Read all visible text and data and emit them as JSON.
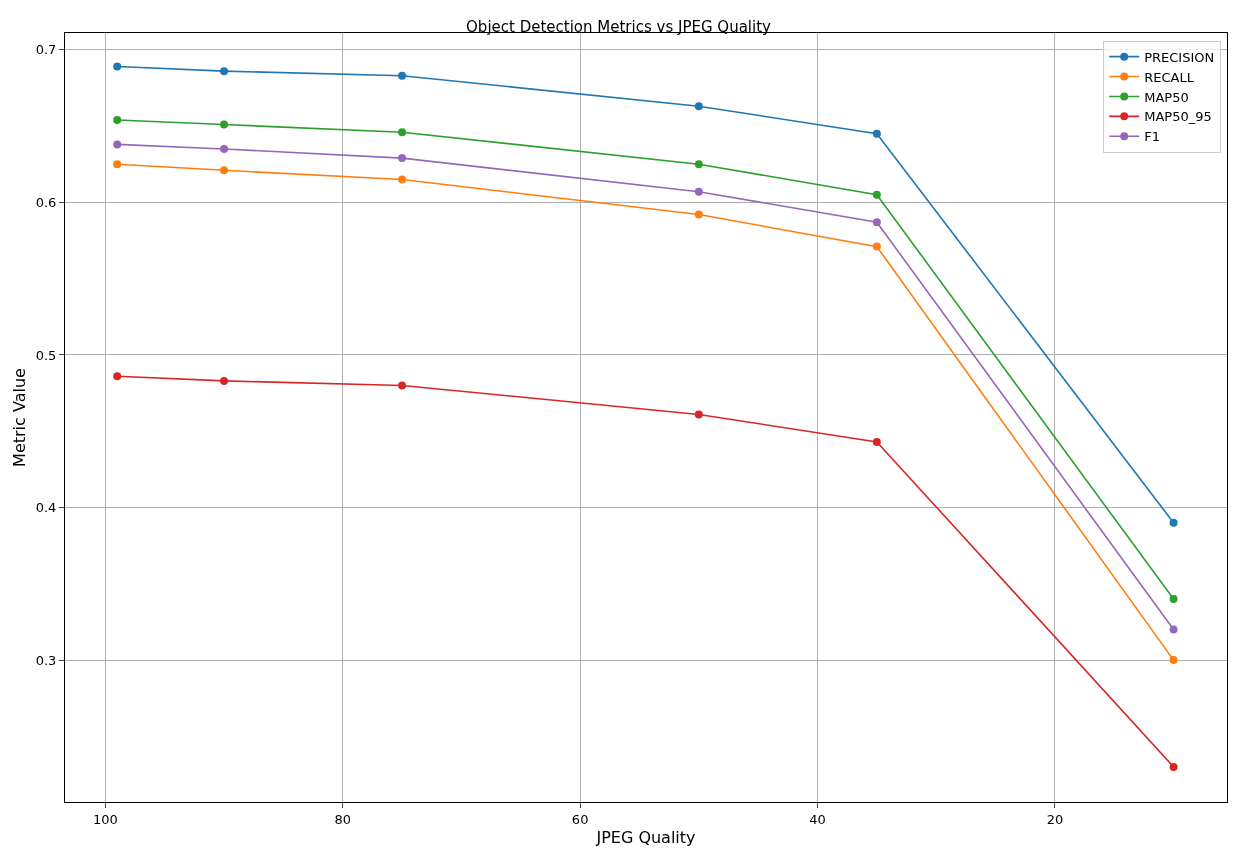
{
  "chart_data": {
    "type": "line",
    "title": "Object Detection Metrics vs JPEG Quality",
    "xlabel": "JPEG Quality",
    "ylabel": "Metric Value",
    "x": [
      99,
      90,
      75,
      50,
      35,
      10
    ],
    "series": [
      {
        "name": "PRECISION",
        "color": "#1f77b4",
        "values": [
          0.689,
          0.686,
          0.683,
          0.663,
          0.645,
          0.39
        ]
      },
      {
        "name": "RECALL",
        "color": "#ff7f0e",
        "values": [
          0.625,
          0.621,
          0.615,
          0.592,
          0.571,
          0.3
        ]
      },
      {
        "name": "MAP50",
        "color": "#2ca02c",
        "values": [
          0.654,
          0.651,
          0.646,
          0.625,
          0.605,
          0.34
        ]
      },
      {
        "name": "MAP50_95",
        "color": "#d62728",
        "values": [
          0.486,
          0.483,
          0.48,
          0.461,
          0.443,
          0.23
        ]
      },
      {
        "name": "F1",
        "color": "#9467bd",
        "values": [
          0.638,
          0.635,
          0.629,
          0.607,
          0.587,
          0.32
        ]
      }
    ],
    "xlim": [
      103.4,
      5.5
    ],
    "xticks": [
      100,
      80,
      60,
      40,
      20
    ],
    "ylim": [
      0.207,
      0.711
    ],
    "yticks": [
      0.3,
      0.4,
      0.5,
      0.6,
      0.7
    ],
    "grid": true,
    "legend": "top right",
    "marker": "circle",
    "line_style": "solid"
  }
}
